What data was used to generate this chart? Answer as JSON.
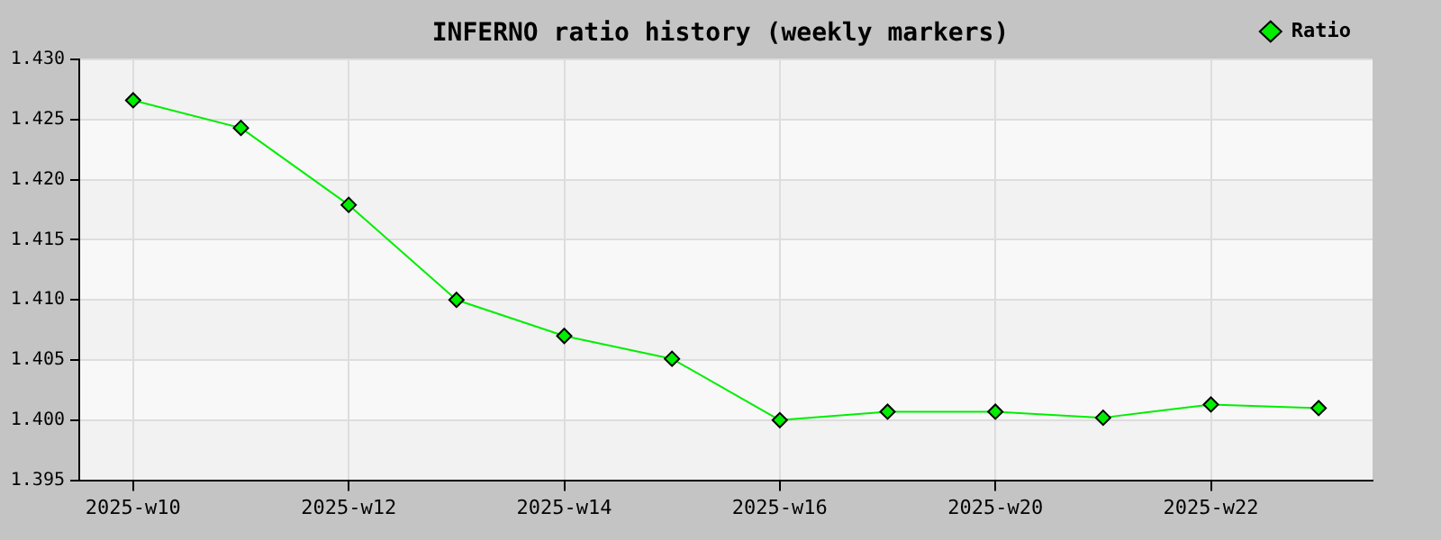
{
  "chart_data": {
    "type": "line",
    "title": "INFERNO ratio history (weekly markers)",
    "categories": [
      "2025-w10",
      null,
      "2025-w12",
      null,
      "2025-w14",
      null,
      "2025-w16",
      null,
      "2025-w20",
      null,
      "2025-w22",
      null
    ],
    "series": [
      {
        "name": "Ratio",
        "color": "#00ee00",
        "values": [
          1.4266,
          1.4243,
          1.4179,
          1.41,
          1.407,
          1.4051,
          1.4,
          1.4007,
          1.4007,
          1.4002,
          1.4013,
          1.401
        ]
      }
    ],
    "ylim": [
      1.395,
      1.43
    ],
    "yticks": [
      {
        "value": 1.395,
        "label": "1.395"
      },
      {
        "value": 1.4,
        "label": "1.400"
      },
      {
        "value": 1.405,
        "label": "1.405"
      },
      {
        "value": 1.41,
        "label": "1.410"
      },
      {
        "value": 1.415,
        "label": "1.415"
      },
      {
        "value": 1.42,
        "label": "1.420"
      },
      {
        "value": 1.425,
        "label": "1.425"
      },
      {
        "value": 1.43,
        "label": "1.430"
      }
    ],
    "grid": true,
    "legend": "top right",
    "marker": "diamond",
    "line_style": "solid"
  }
}
